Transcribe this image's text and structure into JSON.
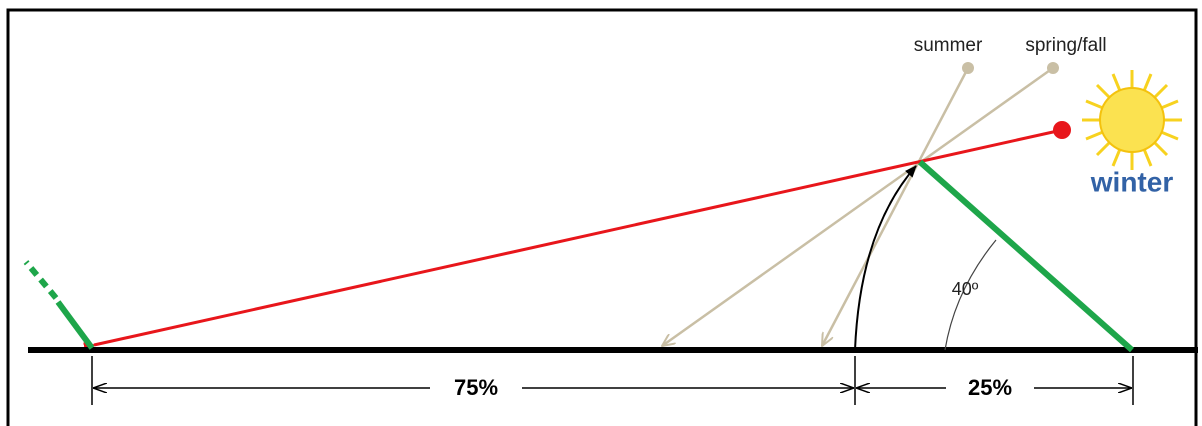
{
  "labels": {
    "summer": "summer",
    "spring_fall": "spring/fall",
    "winter": "winter",
    "angle": "40º",
    "left_share": "75%",
    "right_share": "25%"
  }
}
